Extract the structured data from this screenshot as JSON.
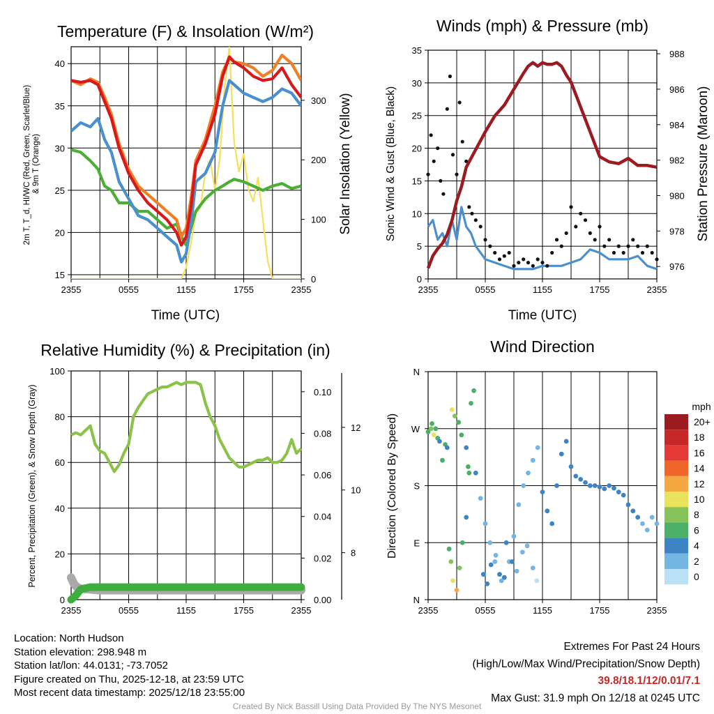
{
  "chart_data": [
    {
      "type": "line",
      "title": "Temperature (F) & Insolation (W/m²)",
      "xlabel": "Time (UTC)",
      "ylabel": "2m T, Td, HI/WC (Red, Green, Scarlet/Blue) & 9m T (Orange)",
      "ylabel_line1": "2m T, T_d, HI/WC (Red, Green, Scarlet/Blue)",
      "ylabel_line2": "& 9m T (Orange)",
      "y2label": "Solar Insolation (Yellow)",
      "xticks": [
        "2355",
        "0555",
        "1155",
        "1755",
        "2355"
      ],
      "xlim": [
        0,
        24
      ],
      "ylim": [
        14.5,
        42
      ],
      "yticks": [
        15,
        20,
        25,
        30,
        35,
        40
      ],
      "y2lim": [
        0,
        390
      ],
      "y2ticks": [
        0,
        100,
        200,
        300
      ],
      "series": [
        {
          "name": "9m T",
          "color": "#f07e26",
          "x": [
            0,
            1,
            2,
            2.8,
            3.5,
            4.2,
            5,
            6,
            7,
            8,
            9,
            10,
            11,
            11.5,
            12,
            12.5,
            13,
            14,
            15,
            15.8,
            16.5,
            17,
            18,
            19,
            20,
            21,
            22,
            23,
            24
          ],
          "y": [
            38,
            37.5,
            38.2,
            37.8,
            36,
            34,
            30.5,
            27.5,
            25.5,
            24.5,
            23.5,
            22.5,
            21.5,
            19.5,
            20.5,
            24,
            28.5,
            31,
            35,
            39,
            40.7,
            40.2,
            40,
            39.5,
            38.5,
            39.2,
            41,
            40,
            38
          ]
        },
        {
          "name": "2m T",
          "color": "#d7191c",
          "x": [
            0,
            1,
            2,
            2.8,
            3.5,
            4.2,
            5,
            6,
            7,
            8,
            9,
            10,
            11,
            11.5,
            12,
            12.5,
            13,
            14,
            15,
            15.8,
            16.5,
            17,
            18,
            19,
            20,
            21,
            22,
            23,
            24
          ],
          "y": [
            38,
            37.8,
            38,
            37.5,
            35.5,
            33.5,
            30,
            27,
            25,
            23.5,
            22.5,
            21.5,
            20,
            18.5,
            19.5,
            23,
            28,
            30.5,
            34,
            38.5,
            40.8,
            40.2,
            39.5,
            38.5,
            38,
            38.2,
            39.5,
            37.5,
            36
          ]
        },
        {
          "name": "HI/WC",
          "color": "#4a90cf",
          "x": [
            0,
            1,
            2,
            2.8,
            3.5,
            4.2,
            5,
            6,
            7,
            8,
            9,
            10,
            11,
            11.5,
            12,
            12.5,
            13,
            14,
            15,
            15.8,
            16.5,
            17,
            18,
            19,
            20,
            21,
            22,
            23,
            24
          ],
          "y": [
            32,
            33,
            32.5,
            33.5,
            31,
            29.5,
            26,
            24,
            22,
            21.5,
            20.5,
            19.5,
            18.5,
            16.5,
            17.5,
            21,
            26,
            27,
            29.5,
            35,
            38,
            37.5,
            36.5,
            36,
            35.5,
            36,
            37,
            36.5,
            35
          ]
        },
        {
          "name": "2m Td",
          "color": "#4caf35",
          "x": [
            0,
            1,
            2,
            2.8,
            3.5,
            4.2,
            5,
            6,
            7,
            8,
            9,
            10,
            11,
            11.5,
            12,
            12.5,
            13,
            14,
            15,
            15.8,
            16.5,
            17,
            18,
            19,
            20,
            21,
            22,
            23,
            24
          ],
          "y": [
            29.8,
            29.5,
            28.5,
            27.5,
            25.5,
            25,
            23.5,
            23.5,
            22.5,
            22.5,
            21.5,
            20.5,
            21,
            19.5,
            18.5,
            20.5,
            22.5,
            24,
            25,
            25.5,
            26,
            26.3,
            26,
            25.5,
            25,
            25.5,
            25.8,
            25.2,
            25.5
          ]
        },
        {
          "name": "Solar Insolation",
          "axis": "y2",
          "color": "#f5e05a",
          "x": [
            0,
            6,
            11.5,
            12,
            12.5,
            13,
            13.5,
            14,
            14.5,
            15,
            15.5,
            16,
            16.5,
            17,
            17.5,
            18,
            18.5,
            19,
            19.5,
            20,
            20.5,
            21,
            24
          ],
          "y": [
            0,
            0,
            0,
            20,
            60,
            110,
            120,
            180,
            200,
            150,
            200,
            320,
            390,
            230,
            180,
            210,
            150,
            130,
            170,
            100,
            30,
            0,
            0
          ]
        }
      ]
    },
    {
      "type": "scatter",
      "title": "Winds (mph) & Pressure (mb)",
      "xlabel": "Time (UTC)",
      "ylabel": "Sonic Wind & Gust (Blue, Black)",
      "y2label": "Station Pressure (Maroon)",
      "xticks": [
        "2355",
        "0555",
        "1155",
        "1755",
        "2355"
      ],
      "xlim": [
        0,
        24
      ],
      "ylim": [
        0,
        35
      ],
      "yticks": [
        0,
        5,
        10,
        15,
        20,
        25,
        30,
        35
      ],
      "y2lim": [
        975.3,
        988.2
      ],
      "y2ticks": [
        976,
        978,
        980,
        982,
        984,
        986,
        988
      ],
      "series": [
        {
          "name": "Station Pressure",
          "axis": "y2",
          "color": "#9b1c20",
          "x": [
            0,
            0.5,
            1,
            1.5,
            2,
            2.5,
            3,
            3.5,
            4,
            5,
            6,
            7,
            8,
            9,
            10,
            10.5,
            11,
            11.5,
            12,
            12.5,
            13,
            13.5,
            14,
            14.5,
            15,
            16,
            17,
            18,
            19,
            20,
            21,
            22,
            23,
            24
          ],
          "y": [
            975.9,
            976.6,
            977,
            977.3,
            977.8,
            978.6,
            979.7,
            980.5,
            981.6,
            982.6,
            983.6,
            984.5,
            985.1,
            986,
            986.9,
            987.3,
            987.5,
            987.3,
            987.5,
            987.4,
            987.4,
            987.5,
            987.3,
            986.8,
            986.4,
            985,
            983.6,
            982.2,
            981.9,
            981.8,
            982.1,
            981.7,
            981.7,
            981.6
          ]
        },
        {
          "name": "Sonic Wind",
          "color": "#4a90cf",
          "x": [
            0,
            0.5,
            1,
            1.5,
            2,
            2.5,
            3,
            3.5,
            4,
            4.5,
            5,
            5.5,
            6,
            7,
            8,
            9,
            10,
            11,
            12,
            13,
            14,
            15,
            16,
            17,
            18,
            19,
            20,
            21,
            22,
            23,
            24
          ],
          "y": [
            8,
            9,
            6,
            7,
            5,
            9,
            6,
            11,
            8,
            7,
            5,
            4,
            3,
            2.5,
            2,
            1.5,
            1.5,
            1.5,
            2,
            2,
            2,
            2.5,
            3,
            4.5,
            4,
            3,
            3,
            3,
            3.5,
            2,
            1.5
          ]
        },
        {
          "name": "Gust",
          "color": "#111111",
          "x": [
            0,
            0.3,
            0.6,
            1,
            1.3,
            1.6,
            2,
            2.3,
            2.6,
            3,
            3.3,
            3.6,
            4,
            4.3,
            4.6,
            5,
            5.5,
            6,
            6.5,
            7,
            7.5,
            8,
            8.5,
            9,
            9.5,
            10,
            10.5,
            11,
            11.5,
            12,
            12.5,
            13,
            13.5,
            14,
            14.5,
            15,
            15.5,
            16,
            16.5,
            17,
            17.5,
            18,
            18.5,
            19,
            19.5,
            20,
            20.5,
            21,
            21.5,
            22,
            22.5,
            23,
            23.5,
            24
          ],
          "y": [
            16,
            22,
            18,
            20,
            15,
            13,
            26,
            31,
            19,
            16,
            27,
            21,
            18,
            11,
            10,
            9,
            8,
            6,
            5,
            4,
            3,
            3.5,
            4,
            2,
            2.5,
            3,
            2.5,
            2,
            3,
            2.5,
            2,
            4,
            6,
            5,
            7,
            11,
            8,
            10,
            9,
            7,
            6,
            8,
            5,
            6,
            4,
            5,
            4,
            5,
            6,
            5,
            4,
            5,
            4,
            3
          ]
        }
      ]
    },
    {
      "type": "line",
      "title": "Relative Humidity (%) & Precipitation (in)",
      "ylabel": "Percent, Precipitation (Green), & Snow Depth (Gray)",
      "xticks": [
        "2355",
        "0555",
        "1155",
        "1755",
        "2355"
      ],
      "xlim": [
        0,
        24
      ],
      "ylim": [
        0,
        100
      ],
      "yticks": [
        0,
        20,
        40,
        60,
        80,
        100
      ],
      "y2lim": [
        0,
        0.11
      ],
      "y2ticks": [
        "0.00",
        "0.02",
        "0.04",
        "0.06",
        "0.08",
        "0.10"
      ],
      "y3lim": [
        6.5,
        13.8
      ],
      "y3ticks": [
        8,
        10,
        12
      ],
      "series": [
        {
          "name": "Relative Humidity",
          "color": "#8bc34a",
          "x": [
            0,
            0.5,
            1,
            1.5,
            2,
            2.5,
            3,
            3.5,
            4,
            4.5,
            5,
            5.5,
            6,
            6.5,
            7,
            7.5,
            8,
            8.5,
            9,
            9.5,
            10,
            10.5,
            11,
            11.5,
            12,
            12.5,
            13,
            13.5,
            14,
            14.5,
            15,
            15.5,
            16,
            16.5,
            17,
            17.5,
            18,
            18.5,
            19,
            19.5,
            20,
            20.5,
            21,
            21.5,
            22,
            22.5,
            23,
            23.5,
            24
          ],
          "y": [
            72,
            73,
            72,
            74,
            76,
            68,
            65,
            64,
            60,
            56,
            59,
            64,
            68,
            80,
            84,
            87,
            90,
            91,
            92,
            93,
            93,
            94,
            95,
            94,
            95,
            95,
            95,
            94,
            86,
            80,
            76,
            70,
            66,
            62,
            60,
            58,
            58,
            59,
            60,
            61,
            61,
            62,
            60,
            60,
            61,
            64,
            70,
            64,
            66
          ]
        },
        {
          "name": "Precipitation",
          "axis": "y2",
          "color": "#3fae3f",
          "x": [
            0,
            0.5,
            1,
            2,
            24
          ],
          "y": [
            0,
            0.002,
            0.005,
            0.006,
            0.006
          ]
        },
        {
          "name": "Snow Depth",
          "axis": "y3",
          "color": "#aaaaaa",
          "x": [
            0,
            0.3,
            0.6,
            1,
            3,
            6,
            9,
            12,
            15,
            18,
            21,
            24
          ],
          "y": [
            7.2,
            7.0,
            6.9,
            6.85,
            6.8,
            6.8,
            6.8,
            6.8,
            6.8,
            6.8,
            6.8,
            6.8
          ]
        }
      ]
    },
    {
      "type": "scatter",
      "title": "Wind Direction",
      "ylabel": "Direction (Colored By Speed)",
      "xticks": [
        "2355",
        "0555",
        "1155",
        "1755",
        "2355"
      ],
      "xlim": [
        0,
        24
      ],
      "ylim": [
        0,
        360
      ],
      "yticks": [
        "N",
        "E",
        "S",
        "W",
        "N"
      ],
      "legend_title": "mph",
      "legend_labels": [
        "20+",
        "18",
        "16",
        "14",
        "12",
        "10",
        "8",
        "6",
        "4",
        "2",
        "0"
      ],
      "legend_colors": [
        "#9b1c20",
        "#c62828",
        "#e53935",
        "#f0652a",
        "#f5a742",
        "#e8e35a",
        "#86c35a",
        "#4caf68",
        "#3d84c4",
        "#74b5e4",
        "#b9e0f5"
      ],
      "points": {
        "x": [
          0,
          0.3,
          0.6,
          1,
          1.2,
          0.4,
          0.8,
          1.5,
          1.8,
          2,
          2.2,
          2.4,
          2.6,
          3,
          3.3,
          3.6,
          4,
          4.3,
          4.5,
          4.8,
          2.5,
          2.8,
          3.2,
          3.5,
          4,
          4.2,
          5,
          5.5,
          6,
          6.5,
          7,
          7.5,
          8,
          8.5,
          9,
          9.5,
          10,
          10.5,
          11,
          11.5,
          12,
          12.5,
          13,
          13.5,
          14,
          14.5,
          15,
          15.5,
          16,
          16.5,
          17,
          17.5,
          18,
          18.5,
          19,
          19.5,
          20,
          20.5,
          21,
          21.5,
          22,
          22.5,
          23,
          23.5,
          24,
          5.8,
          6.2,
          6.6,
          7.1,
          7.7,
          8.2,
          8.8,
          9.3,
          9.9,
          10.4,
          11,
          11.4
        ],
        "y": [
          265,
          270,
          260,
          255,
          250,
          278,
          270,
          220,
          245,
          240,
          80,
          60,
          30,
          15,
          50,
          90,
          130,
          200,
          310,
          330,
          300,
          290,
          280,
          260,
          240,
          210,
          200,
          160,
          120,
          90,
          60,
          40,
          35,
          60,
          100,
          150,
          180,
          200,
          220,
          240,
          170,
          140,
          120,
          180,
          230,
          250,
          210,
          195,
          190,
          185,
          180,
          180,
          178,
          175,
          180,
          176,
          170,
          165,
          150,
          140,
          130,
          120,
          110,
          130,
          120,
          40,
          25,
          55,
          70,
          30,
          90,
          60,
          45,
          75,
          85,
          50,
          30
        ],
        "mph": [
          6,
          8,
          10,
          6,
          4,
          6,
          6,
          6,
          5,
          4,
          6,
          8,
          10,
          12,
          8,
          6,
          4,
          6,
          6,
          6,
          10,
          8,
          6,
          6,
          4,
          6,
          4,
          2,
          2,
          2,
          2,
          3,
          3,
          2,
          2,
          1,
          2,
          2,
          2,
          1,
          3,
          3,
          3,
          4,
          4,
          4,
          4,
          4,
          4,
          3,
          4,
          4,
          4,
          4,
          4,
          3,
          3,
          3,
          3,
          3,
          3,
          2,
          2,
          2,
          2,
          4,
          3,
          3,
          2,
          2,
          3,
          3,
          2,
          1,
          2,
          1,
          0
        ]
      }
    }
  ],
  "info": {
    "location": "Location: North Hudson",
    "elevation": "Station elevation: 298.948 m",
    "latlon": "Station lat/lon: 44.0131; -73.7052",
    "created": "Figure created on Thu, 2025-12-18, at 23:59 UTC",
    "recent": "Most recent data timestamp: 2025/12/18 23:55:00"
  },
  "extremes": {
    "title": "Extremes For Past 24 Hours",
    "subtitle": "(High/Low/Max Wind/Precipitation/Snow Depth)",
    "values": "39.8/18.1/12/0.01/7.1",
    "gust": "Max Gust: 31.9 mph On 12/18 at 0245 UTC"
  },
  "credit": "Created By Nick Bassill Using Data Provided By The NYS Mesonet"
}
